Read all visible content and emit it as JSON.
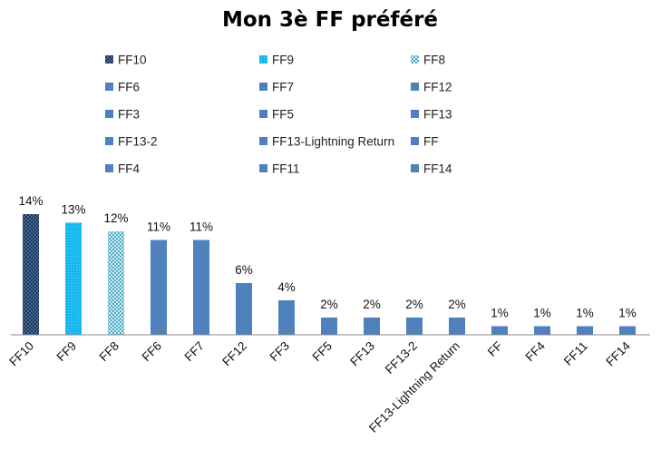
{
  "chart_data": {
    "type": "bar",
    "title": "Mon 3è FF préféré",
    "categories": [
      "FF10",
      "FF9",
      "FF8",
      "FF6",
      "FF7",
      "FF12",
      "FF3",
      "FF5",
      "FF13",
      "FF13-2",
      "FF13-Lightning Return",
      "FF",
      "FF4",
      "FF11",
      "FF14"
    ],
    "values": [
      14,
      13,
      12,
      11,
      11,
      6,
      4,
      2,
      2,
      2,
      2,
      1,
      1,
      1,
      1
    ],
    "value_labels": [
      "14%",
      "13%",
      "12%",
      "11%",
      "11%",
      "6%",
      "4%",
      "2%",
      "2%",
      "2%",
      "2%",
      "1%",
      "1%",
      "1%",
      "1%"
    ],
    "unit": "%",
    "ylim": [
      0,
      14
    ],
    "grid": false,
    "legend_position": "top",
    "legend_columns": 3,
    "legend_entries": [
      "FF10",
      "FF9",
      "FF8",
      "FF6",
      "FF7",
      "FF12",
      "FF3",
      "FF5",
      "FF13",
      "FF13-2",
      "FF13-Lightning Return",
      "FF",
      "FF4",
      "FF11",
      "FF14"
    ],
    "colors": {
      "FF10": "#17375e",
      "FF9": "#00b0f0",
      "FF8": "#4bacc6",
      "default": "#4f81bd"
    },
    "fill_patterns": {
      "FF10": "dots",
      "FF9": "small-dots",
      "FF8": "checker",
      "default": "solid"
    }
  }
}
